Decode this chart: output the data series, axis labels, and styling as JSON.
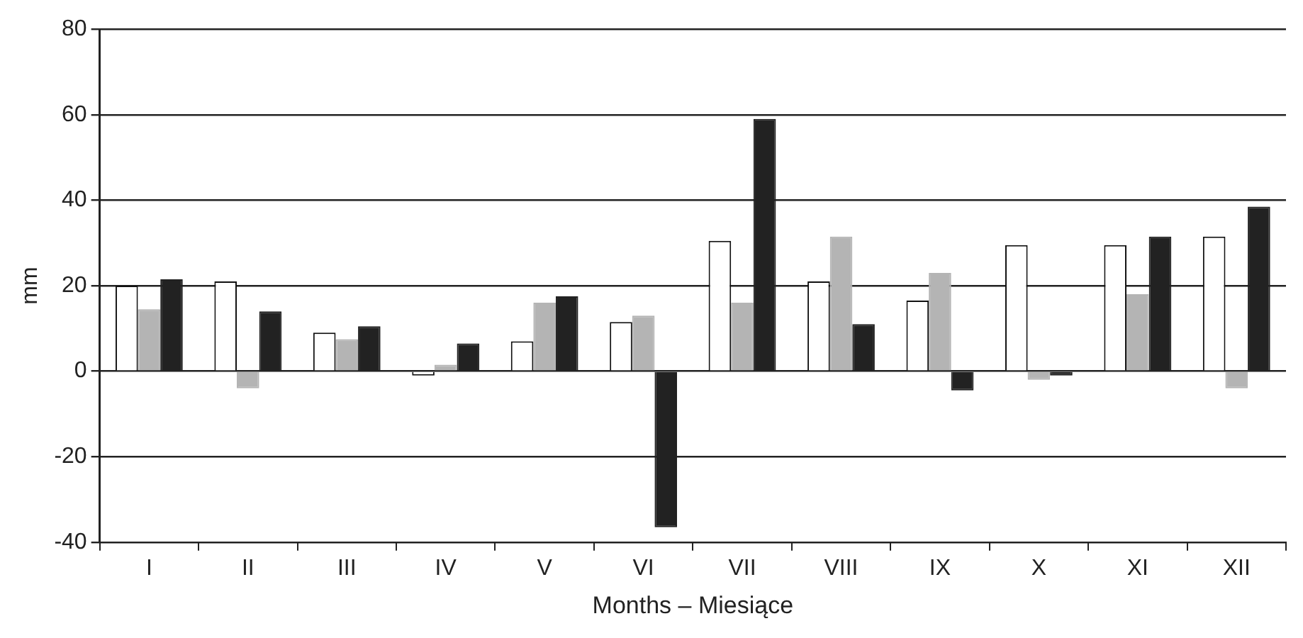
{
  "chart_data": {
    "type": "bar",
    "xlabel": "Months – Miesiące",
    "ylabel": "mm",
    "categories": [
      "I",
      "II",
      "III",
      "IV",
      "V",
      "VI",
      "VII",
      "VIII",
      "IX",
      "X",
      "XI",
      "XII"
    ],
    "series": [
      {
        "color": "#ffffff",
        "values": [
          20,
          21,
          9,
          -1,
          7,
          11.5,
          30.5,
          21,
          16.5,
          29.5,
          29.5,
          31.5
        ]
      },
      {
        "color": "#b4b4b4",
        "values": [
          14.5,
          -4,
          7.5,
          1.5,
          16,
          13,
          16,
          31.5,
          23,
          -2,
          18,
          -4
        ]
      },
      {
        "color": "#222222",
        "values": [
          21.5,
          14,
          10.5,
          6.5,
          17.5,
          -36.5,
          59,
          11,
          -4.5,
          -1,
          31.5,
          38.5
        ]
      }
    ],
    "ylim": [
      -40,
      80
    ],
    "yticks": [
      -40,
      -20,
      0,
      20,
      40,
      60,
      80
    ],
    "grid": "y",
    "legend": false
  }
}
